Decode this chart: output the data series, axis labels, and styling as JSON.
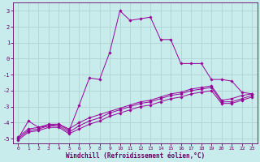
{
  "bg_color": "#c8ecec",
  "grid_color": "#b0d4d4",
  "line_color": "#990099",
  "xlim": [
    -0.5,
    23.5
  ],
  "ylim": [
    -5.3,
    3.5
  ],
  "xticks": [
    0,
    1,
    2,
    3,
    4,
    5,
    6,
    7,
    8,
    9,
    10,
    11,
    12,
    13,
    14,
    15,
    16,
    17,
    18,
    19,
    20,
    21,
    22,
    23
  ],
  "yticks": [
    -5,
    -4,
    -3,
    -2,
    -1,
    0,
    1,
    2,
    3
  ],
  "xlabel": "Windchill (Refroidissement éolien,°C)",
  "lines": [
    {
      "x": [
        0,
        1,
        2,
        3,
        4,
        5,
        6,
        7,
        8,
        9,
        10,
        11,
        12,
        13,
        14,
        15,
        16,
        17,
        18,
        19,
        20,
        21,
        22,
        23
      ],
      "y": [
        -5.0,
        -3.9,
        -4.3,
        -4.1,
        -4.1,
        -4.5,
        -2.9,
        -1.2,
        -1.3,
        0.4,
        3.0,
        2.4,
        2.5,
        2.6,
        1.2,
        1.2,
        -0.3,
        -0.3,
        -0.3,
        -1.3,
        -1.3,
        -1.4,
        -2.1,
        -2.2
      ]
    },
    {
      "x": [
        0,
        1,
        2,
        3,
        4,
        5,
        6,
        7,
        8,
        9,
        10,
        11,
        12,
        13,
        14,
        15,
        16,
        17,
        18,
        19,
        20,
        21,
        22,
        23
      ],
      "y": [
        -4.9,
        -4.4,
        -4.3,
        -4.2,
        -4.1,
        -4.4,
        -4.0,
        -3.7,
        -3.5,
        -3.3,
        -3.1,
        -2.9,
        -2.7,
        -2.6,
        -2.4,
        -2.2,
        -2.1,
        -1.9,
        -1.8,
        -1.7,
        -2.6,
        -2.5,
        -2.3,
        -2.2
      ]
    },
    {
      "x": [
        0,
        1,
        2,
        3,
        4,
        5,
        6,
        7,
        8,
        9,
        10,
        11,
        12,
        13,
        14,
        15,
        16,
        17,
        18,
        19,
        20,
        21,
        22,
        23
      ],
      "y": [
        -5.0,
        -4.5,
        -4.4,
        -4.2,
        -4.2,
        -4.6,
        -4.2,
        -3.9,
        -3.7,
        -3.4,
        -3.2,
        -3.0,
        -2.8,
        -2.7,
        -2.5,
        -2.3,
        -2.2,
        -2.0,
        -1.9,
        -1.8,
        -2.7,
        -2.7,
        -2.5,
        -2.3
      ]
    },
    {
      "x": [
        0,
        1,
        2,
        3,
        4,
        5,
        6,
        7,
        8,
        9,
        10,
        11,
        12,
        13,
        14,
        15,
        16,
        17,
        18,
        19,
        20,
        21,
        22,
        23
      ],
      "y": [
        -5.1,
        -4.6,
        -4.5,
        -4.3,
        -4.3,
        -4.7,
        -4.4,
        -4.1,
        -3.9,
        -3.6,
        -3.4,
        -3.2,
        -3.0,
        -2.9,
        -2.7,
        -2.5,
        -2.4,
        -2.2,
        -2.1,
        -2.0,
        -2.8,
        -2.8,
        -2.6,
        -2.4
      ]
    }
  ]
}
